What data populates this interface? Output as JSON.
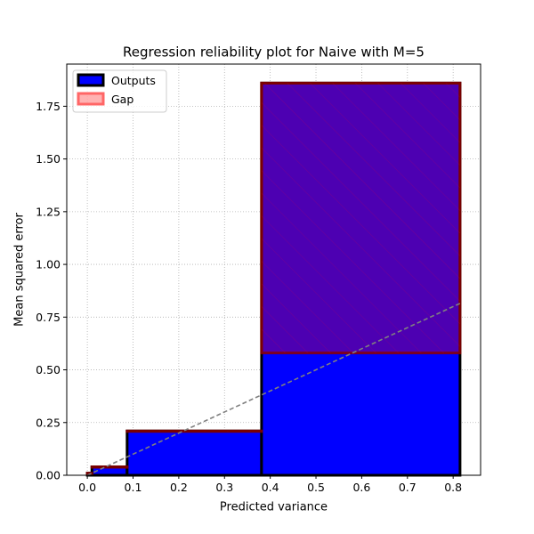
{
  "chart_data": {
    "type": "bar",
    "title": "Regression reliability plot for Naive with M=5",
    "xlabel": "Predicted variance",
    "ylabel": "Mean squared error",
    "xlim": [
      -0.045,
      0.86
    ],
    "ylim": [
      0,
      1.95
    ],
    "grid": true,
    "legend_position": "top-left",
    "xticks": [
      0.0,
      0.1,
      0.2,
      0.3,
      0.4,
      0.5,
      0.6,
      0.7,
      0.8
    ],
    "xtick_labels": [
      "0.0",
      "0.1",
      "0.2",
      "0.3",
      "0.4",
      "0.5",
      "0.6",
      "0.7",
      "0.8"
    ],
    "yticks": [
      0.0,
      0.25,
      0.5,
      0.75,
      1.0,
      1.25,
      1.5,
      1.75
    ],
    "ytick_labels": [
      "0.00",
      "0.25",
      "0.50",
      "0.75",
      "1.00",
      "1.25",
      "1.50",
      "1.75"
    ],
    "bins": [
      {
        "x_start": 0.0,
        "x_end": 0.01,
        "output": 0.01,
        "expected": 0.005
      },
      {
        "x_start": 0.01,
        "x_end": 0.087,
        "output": 0.04,
        "expected": 0.04
      },
      {
        "x_start": 0.087,
        "x_end": 0.381,
        "output": 0.21,
        "expected": 0.21
      },
      {
        "x_start": 0.381,
        "x_end": 0.815,
        "output": 1.86,
        "expected": 0.58
      }
    ],
    "diagonal": {
      "x": [
        0.0,
        0.815
      ],
      "y": [
        0.0,
        0.815
      ]
    },
    "series": [
      {
        "name": "Outputs",
        "color": "#0000ff",
        "edge_color": "#000000"
      },
      {
        "name": "Gap",
        "color": "#ff0000",
        "edge_color": "#ff0000"
      }
    ],
    "colors": {
      "outputs_fill": "#0000ff",
      "outputs_edge": "#000000",
      "gap_fill": "#ff0000",
      "gap_edge": "#8b0000",
      "diagonal": "#808080",
      "grid": "#b0b0b0"
    }
  }
}
